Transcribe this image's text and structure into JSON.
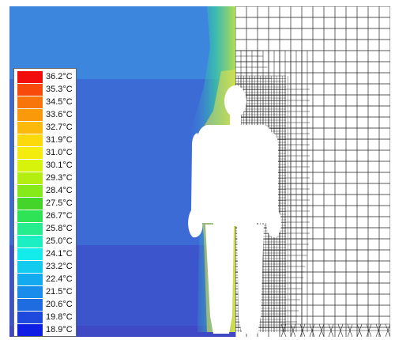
{
  "legend": {
    "entries": [
      {
        "label": "36.2°C",
        "color": "#f20d0d"
      },
      {
        "label": "35.3°C",
        "color": "#f74a0b"
      },
      {
        "label": "34.5°C",
        "color": "#f7750a"
      },
      {
        "label": "33.6°C",
        "color": "#fa9a0a"
      },
      {
        "label": "32.7°C",
        "color": "#fbba0b"
      },
      {
        "label": "31.9°C",
        "color": "#fbd90b"
      },
      {
        "label": "31.0°C",
        "color": "#f3ec0c"
      },
      {
        "label": "30.1°C",
        "color": "#d7f30c"
      },
      {
        "label": "29.3°C",
        "color": "#b3ee10"
      },
      {
        "label": "28.4°C",
        "color": "#86e91a"
      },
      {
        "label": "27.5°C",
        "color": "#45d42a"
      },
      {
        "label": "26.7°C",
        "color": "#2ee356"
      },
      {
        "label": "25.8°C",
        "color": "#25ec8d"
      },
      {
        "label": "25.0°C",
        "color": "#1cf0c2"
      },
      {
        "label": "24.1°C",
        "color": "#14ecec"
      },
      {
        "label": "23.2°C",
        "color": "#12cbee"
      },
      {
        "label": "22.4°C",
        "color": "#14aaf0"
      },
      {
        "label": "21.5°C",
        "color": "#1a8ce9"
      },
      {
        "label": "20.6°C",
        "color": "#1e6ce0"
      },
      {
        "label": "19.8°C",
        "color": "#1f48dc"
      },
      {
        "label": "18.9°C",
        "color": "#0e1ee3"
      }
    ]
  },
  "colors": {
    "field_top": "#3d86de",
    "field_mid": "#3c6bd6",
    "field_low": "#3d55cc",
    "field_floor": "#3f49c6",
    "mesh_line": "#222222",
    "silhouette": "#ffffff",
    "plume_warm": "#3cd68f",
    "plume_hot": "#e9e24a"
  }
}
